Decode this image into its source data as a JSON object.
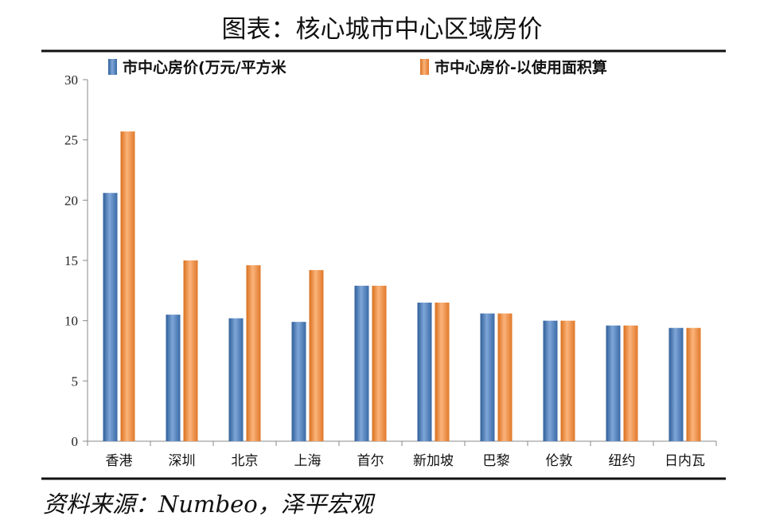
{
  "chart_data": {
    "type": "bar",
    "title": "图表：核心城市中心区域房价",
    "categories": [
      "香港",
      "深圳",
      "北京",
      "上海",
      "首尔",
      "新加坡",
      "巴黎",
      "伦敦",
      "纽约",
      "日内瓦"
    ],
    "series": [
      {
        "name": "市中心房价(万元/平方米",
        "color": "#4f81bd",
        "values": [
          20.6,
          10.5,
          10.2,
          9.9,
          12.9,
          11.5,
          10.6,
          10.0,
          9.6,
          9.4
        ]
      },
      {
        "name": "市中心房价-以使用面积算",
        "color": "#f79646",
        "values": [
          25.7,
          15.0,
          14.6,
          14.2,
          12.9,
          11.5,
          10.6,
          10.0,
          9.6,
          9.4
        ]
      }
    ],
    "xlabel": "",
    "ylabel": "",
    "ylim": [
      0,
      30
    ],
    "yticks": [
      0,
      5,
      10,
      15,
      20,
      25,
      30
    ],
    "grid": false,
    "legend": "top"
  },
  "source": "资料来源：Numbeo，泽平宏观",
  "watermark": "泽平宏观"
}
